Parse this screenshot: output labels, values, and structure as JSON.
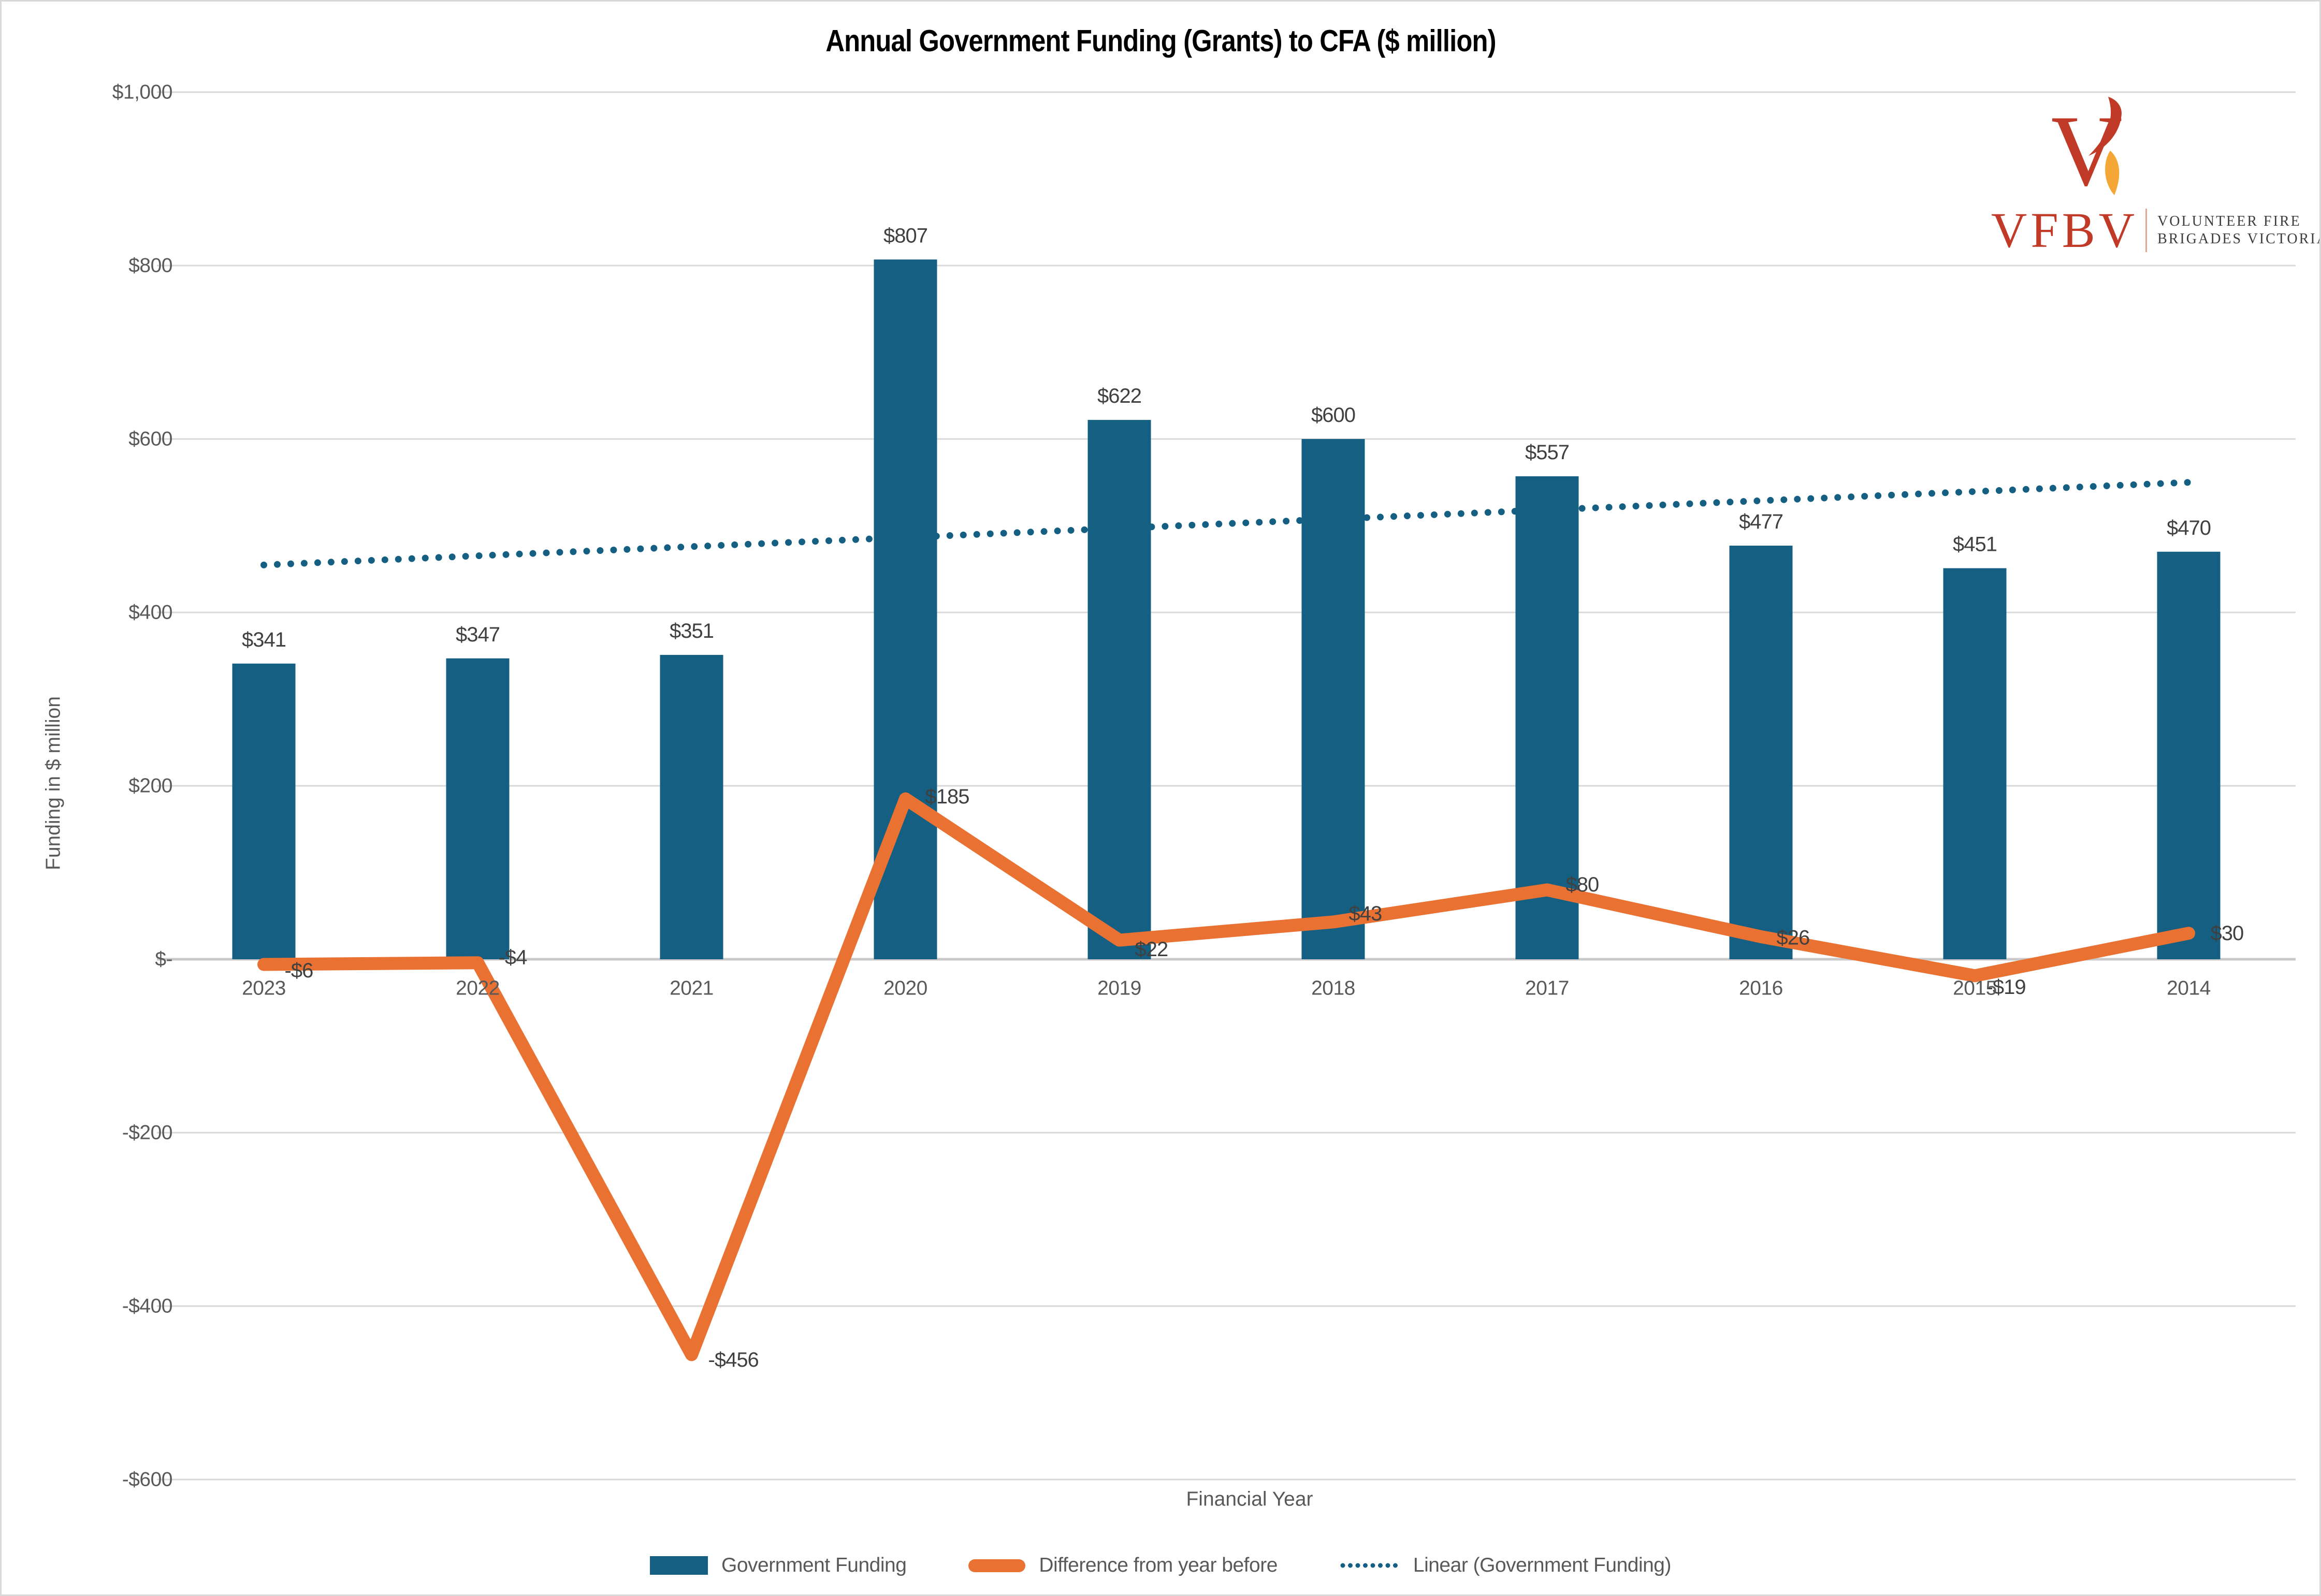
{
  "title": "Annual Government Funding (Grants) to CFA ($ million)",
  "logo": {
    "acronym": "VFBV",
    "org_line1": "VOLUNTEER FIRE",
    "org_line2": "BRIGADES VICTORIA",
    "brand_red": "#C13A27",
    "flame_amber": "#F4A636"
  },
  "chart_data": {
    "type": "bar",
    "title": "Annual Government Funding (Grants) to CFA ($ million)",
    "categories": [
      "2023",
      "2022",
      "2021",
      "2020",
      "2019",
      "2018",
      "2017",
      "2016",
      "2015",
      "2014"
    ],
    "series": [
      {
        "name": "Government Funding",
        "type": "column",
        "color": "#156082",
        "values": [
          341,
          347,
          351,
          807,
          622,
          600,
          557,
          477,
          451,
          470
        ],
        "labels": [
          "$341",
          "$347",
          "$351",
          "$807",
          "$622",
          "$600",
          "$557",
          "$477",
          "$451",
          "$470"
        ]
      },
      {
        "name": "Difference from year before",
        "type": "line",
        "color": "#E97132",
        "values": [
          -6,
          -4,
          -456,
          185,
          22,
          43,
          80,
          26,
          -19,
          30
        ],
        "labels": [
          "-$6",
          "-$4",
          "-$456",
          "$185",
          "$22",
          "$43",
          "$80",
          "$26",
          "-$19",
          "$30"
        ]
      },
      {
        "name": "Linear (Government Funding)",
        "type": "linear-trendline",
        "color": "#156082",
        "line_style": "dotted",
        "trend_endpoints": [
          454.7,
          550.0
        ]
      }
    ],
    "xlabel": "Financial Year",
    "ylabel": "Funding in $ million",
    "ylim": [
      -600,
      1000
    ],
    "ytick_step": 200,
    "ytick_values": [
      1000,
      800,
      600,
      400,
      200,
      0,
      -200,
      -400,
      -600
    ],
    "ytick_labels": [
      "$1,000",
      "$800",
      "$600",
      "$400",
      "$200",
      "$-",
      "-$200",
      "-$400",
      "-$600"
    ],
    "grid": true,
    "gridline_color": "#D9D9D9",
    "axis_text_color": "#595959",
    "data_label_color": "#404040",
    "legend_position": "bottom"
  }
}
